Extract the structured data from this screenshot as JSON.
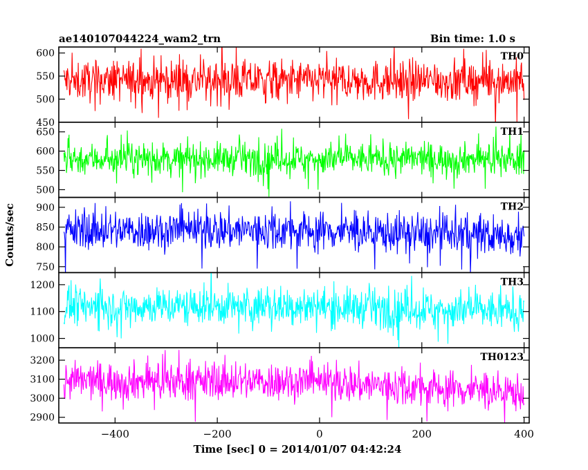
{
  "header": {
    "title": "ae140107044224_wam2_trn",
    "bin_time": "Bin time: 1.0 s"
  },
  "chart_data": {
    "type": "line",
    "title": "ae140107044224_wam2_trn",
    "subtitle": "Bin time: 1.0 s",
    "xlabel": "Time [sec] 0 = 2014/01/07 04:42:24",
    "ylabel": "Counts/sec",
    "xlim": [
      -510,
      410
    ],
    "x_ticks": [
      -400,
      -200,
      0,
      200,
      400
    ],
    "x_tick_labels": [
      "−400",
      "−200",
      "0",
      "200",
      "400"
    ],
    "x_range": [
      -500,
      400
    ],
    "grid": false,
    "panels": [
      {
        "name": "TH0",
        "color": "#ff0000",
        "ylim": [
          450,
          613
        ],
        "yticks": [
          450,
          500,
          550,
          600
        ],
        "ytick_labels": [
          "450",
          "500",
          "550",
          "600"
        ],
        "mean": 540,
        "noise": 22,
        "spike": 60,
        "trend": 0
      },
      {
        "name": "TH1",
        "color": "#00ff00",
        "ylim": [
          480,
          675
        ],
        "yticks": [
          500,
          550,
          600,
          650
        ],
        "ytick_labels": [
          "500",
          "550",
          "600",
          "650"
        ],
        "mean": 580,
        "noise": 20,
        "spike": 75,
        "trend": 0
      },
      {
        "name": "TH2",
        "color": "#0000ff",
        "ylim": [
          735,
          925
        ],
        "yticks": [
          750,
          800,
          850,
          900
        ],
        "ytick_labels": [
          "750",
          "800",
          "850",
          "900"
        ],
        "mean": 842,
        "noise": 25,
        "spike": 80,
        "trend": -15
      },
      {
        "name": "TH3",
        "color": "#00ffff",
        "ylim": [
          965,
          1245
        ],
        "yticks": [
          1000,
          1100,
          1200
        ],
        "ytick_labels": [
          "1000",
          "1100",
          "1200"
        ],
        "mean": 1120,
        "noise": 35,
        "spike": 110,
        "trend": -20
      },
      {
        "name": "TH0123",
        "color": "#ff00ff",
        "ylim": [
          2870,
          3265
        ],
        "yticks": [
          2900,
          3000,
          3100,
          3200
        ],
        "ytick_labels": [
          "2900",
          "3000",
          "3100",
          "3200"
        ],
        "mean": 3090,
        "noise": 50,
        "spike": 140,
        "trend": -60
      }
    ]
  }
}
